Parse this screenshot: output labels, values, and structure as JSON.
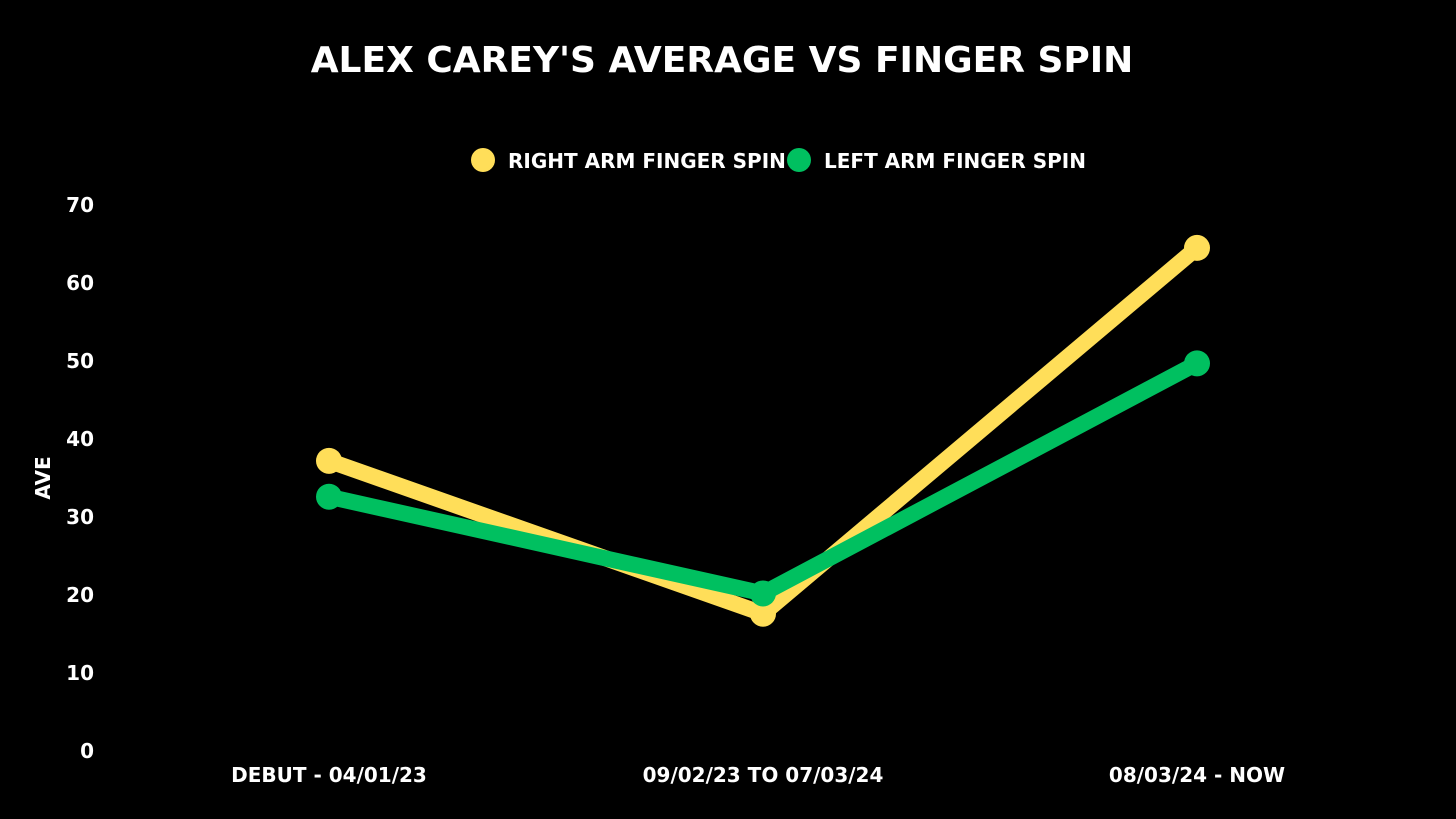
{
  "chart_data": {
    "type": "line",
    "title": "ALEX CAREY'S AVERAGE VS FINGER SPIN",
    "ylabel": "AVE",
    "categories": [
      "DEBUT - 04/01/23",
      "09/02/23 TO 07/03/24",
      "08/03/24 - NOW"
    ],
    "yticks": [
      0,
      10,
      20,
      30,
      40,
      50,
      60,
      70
    ],
    "ylim": [
      0,
      70
    ],
    "grid": false,
    "legend_position": "top-center",
    "series": [
      {
        "name": "RIGHT ARM FINGER SPIN",
        "color": "#FFDE59",
        "values": [
          37.2,
          17.6,
          64.5
        ]
      },
      {
        "name": "LEFT ARM FINGER SPIN",
        "color": "#00C060",
        "values": [
          32.6,
          20.2,
          49.7
        ]
      }
    ]
  }
}
